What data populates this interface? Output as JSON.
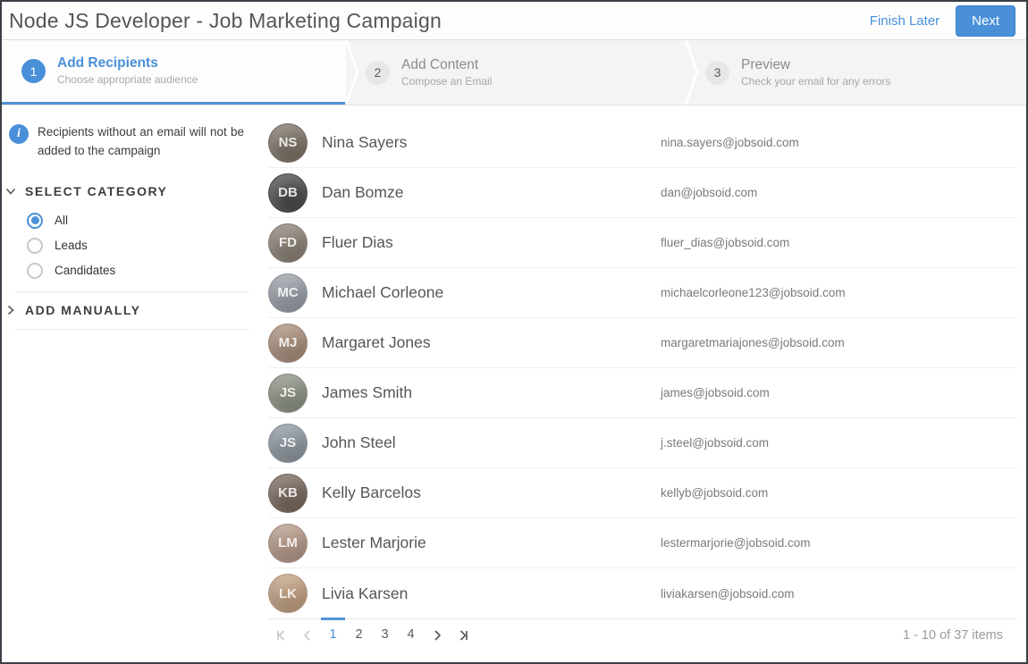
{
  "header": {
    "title": "Node JS Developer - Job Marketing Campaign",
    "finish_later_label": "Finish Later",
    "next_label": "Next"
  },
  "wizard": {
    "steps": [
      {
        "number": "1",
        "title": "Add Recipients",
        "subtitle": "Choose appropriate audience",
        "active": true
      },
      {
        "number": "2",
        "title": "Add Content",
        "subtitle": "Compose an Email",
        "active": false
      },
      {
        "number": "3",
        "title": "Preview",
        "subtitle": "Check your email for any errors",
        "active": false
      }
    ]
  },
  "sidebar": {
    "info_message": "Recipients without an email will not be added to the campaign",
    "select_category": {
      "label": "SELECT CATEGORY",
      "options": [
        {
          "label": "All",
          "selected": true
        },
        {
          "label": "Leads",
          "selected": false
        },
        {
          "label": "Candidates",
          "selected": false
        }
      ]
    },
    "add_manually_label": "ADD MANUALLY"
  },
  "recipients": [
    {
      "name": "Nina Sayers",
      "email": "nina.sayers@jobsoid.com",
      "avatar_color": "#7d7468"
    },
    {
      "name": "Dan Bomze",
      "email": "dan@jobsoid.com",
      "avatar_color": "#4d4d4d"
    },
    {
      "name": "Fluer Dias",
      "email": "fluer_dias@jobsoid.com",
      "avatar_color": "#8c8378"
    },
    {
      "name": "Michael Corleone",
      "email": "michaelcorleone123@jobsoid.com",
      "avatar_color": "#9aa0a8"
    },
    {
      "name": "Margaret Jones",
      "email": "margaretmariajones@jobsoid.com",
      "avatar_color": "#a98f7e"
    },
    {
      "name": "James Smith",
      "email": "james@jobsoid.com",
      "avatar_color": "#8e9387"
    },
    {
      "name": "John Steel",
      "email": "j.steel@jobsoid.com",
      "avatar_color": "#9099a1"
    },
    {
      "name": "Kelly Barcelos",
      "email": "kellyb@jobsoid.com",
      "avatar_color": "#7a6a60"
    },
    {
      "name": "Lester Marjorie",
      "email": "lestermarjorie@jobsoid.com",
      "avatar_color": "#b59a8a"
    },
    {
      "name": "Livia Karsen",
      "email": "liviakarsen@jobsoid.com",
      "avatar_color": "#c2a285"
    }
  ],
  "pagination": {
    "pages": [
      "1",
      "2",
      "3",
      "4"
    ],
    "current_page": "1",
    "summary": "1 - 10 of 37 items"
  },
  "colors": {
    "accent": "#4a90d9",
    "active_step_underline": "#5292d5",
    "inactive_step_bg": "#f4f4f4"
  }
}
